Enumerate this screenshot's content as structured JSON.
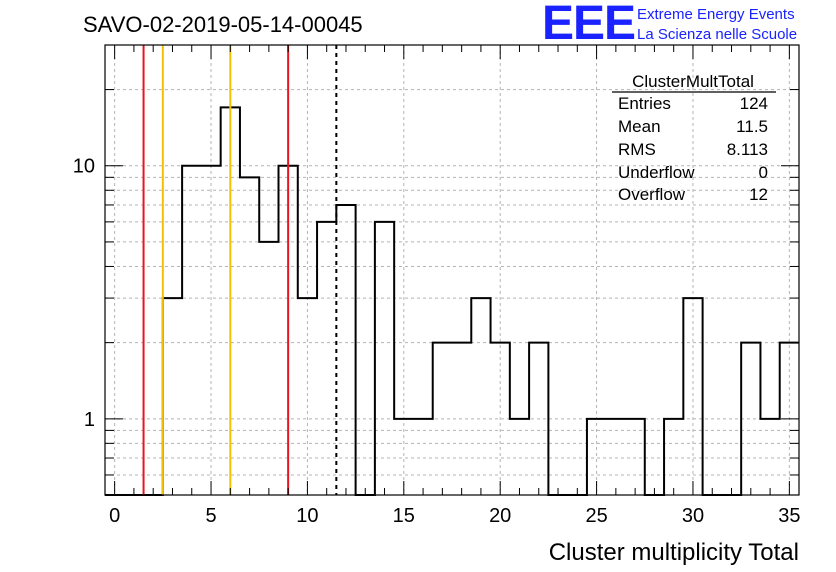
{
  "header": {
    "run_id": "SAVO-02-2019-05-14-00045",
    "logo_text": "EEE",
    "logo_line1": "Extreme Energy Events",
    "logo_line2": "La Scienza nelle Scuole",
    "logo_color": "#1a23ff"
  },
  "stats_box": {
    "title": "ClusterMultTotal",
    "rows": [
      {
        "label": "Entries",
        "value": "124"
      },
      {
        "label": "Mean",
        "value": "11.5"
      },
      {
        "label": "RMS",
        "value": "8.113"
      },
      {
        "label": "Underflow",
        "value": "0"
      },
      {
        "label": "Overflow",
        "value": "12"
      }
    ]
  },
  "chart_data": {
    "type": "bar",
    "style": "step-histogram",
    "title": "SAVO-02-2019-05-14-00045",
    "xlabel": "Cluster multiplicity Total",
    "ylabel": "",
    "xlim": [
      -0.5,
      35.5
    ],
    "ylim": [
      0.5,
      30
    ],
    "y_scale": "log",
    "grid": true,
    "bin_width": 1,
    "bin_centers": [
      0,
      1,
      2,
      3,
      4,
      5,
      6,
      7,
      8,
      9,
      10,
      11,
      12,
      13,
      14,
      15,
      16,
      17,
      18,
      19,
      20,
      21,
      22,
      23,
      24,
      25,
      26,
      27,
      28,
      29,
      30,
      31,
      32,
      33,
      34,
      35
    ],
    "values": [
      0,
      0,
      0,
      3,
      10,
      10,
      17,
      9,
      5,
      10,
      3,
      6,
      7,
      0,
      6,
      1,
      1,
      2,
      2,
      3,
      2,
      1,
      2,
      0,
      0,
      1,
      1,
      1,
      0,
      1,
      3,
      0,
      0,
      2,
      1,
      2
    ],
    "x_ticks": [
      0,
      5,
      10,
      15,
      20,
      25,
      30,
      35
    ],
    "x_tick_labels": [
      "0",
      "5",
      "10",
      "15",
      "20",
      "25",
      "30",
      "35"
    ],
    "y_ticks": [
      1,
      10
    ],
    "y_tick_labels": [
      "1",
      "10"
    ],
    "vertical_lines": [
      {
        "x": 1.5,
        "color": "#e8141e",
        "style": "solid"
      },
      {
        "x": 2.5,
        "color": "#f2c200",
        "style": "solid"
      },
      {
        "x": 6.0,
        "color": "#f2c200",
        "style": "solid"
      },
      {
        "x": 9.0,
        "color": "#e8141e",
        "style": "solid"
      },
      {
        "x": 11.5,
        "color": "#000000",
        "style": "dashed"
      }
    ],
    "histogram_color": "#000000"
  }
}
